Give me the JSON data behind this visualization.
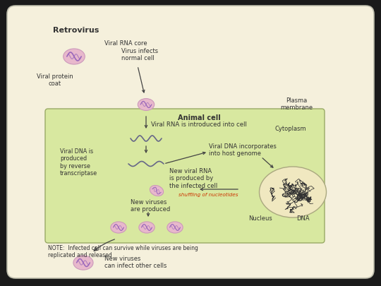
{
  "bg_outer": "#1a1a1a",
  "bg_panel": "#f5f0dc",
  "cell_bg": "#d8e8a0",
  "nucleus_bg": "#f0e8c0",
  "virus_outer": "#e8b8cc",
  "virus_inner": "#9966bb",
  "title": "Retrovirus",
  "note": "NOTE:  Infected cell can survive while viruses are being\nreplicated and released",
  "label_viral_rna_core": "Viral RNA core",
  "label_viral_protein_coat": "Viral protein\ncoat",
  "label_virus_infects": "Virus infects\nnormal cell",
  "label_plasma_membrane": "Plasma\nmembrane",
  "label_animal_cell": "Animal cell",
  "label_cytoplasm": "Cytoplasm",
  "label_viral_rna_introduced": "Viral RNA is introduced into cell",
  "label_viral_dna_produced": "Viral DNA is\nproduced\nby reverse\ntranscriptase",
  "label_viral_dna_incorporates": "Viral DNA incorporates\ninto host genome",
  "label_new_viral_rna": "New viral RNA\nis produced by\nthe infected cell",
  "label_shuffling": "shuffling of nucleotides",
  "label_new_viruses_produced": "New viruses\nare produced",
  "label_nucleus": "Nucleus",
  "label_dna": "DNA",
  "label_new_viruses_infect": "New viruses\ncan infect other cells",
  "shuffling_color": "#cc3300",
  "text_color": "#333333",
  "arrow_color": "#444444"
}
